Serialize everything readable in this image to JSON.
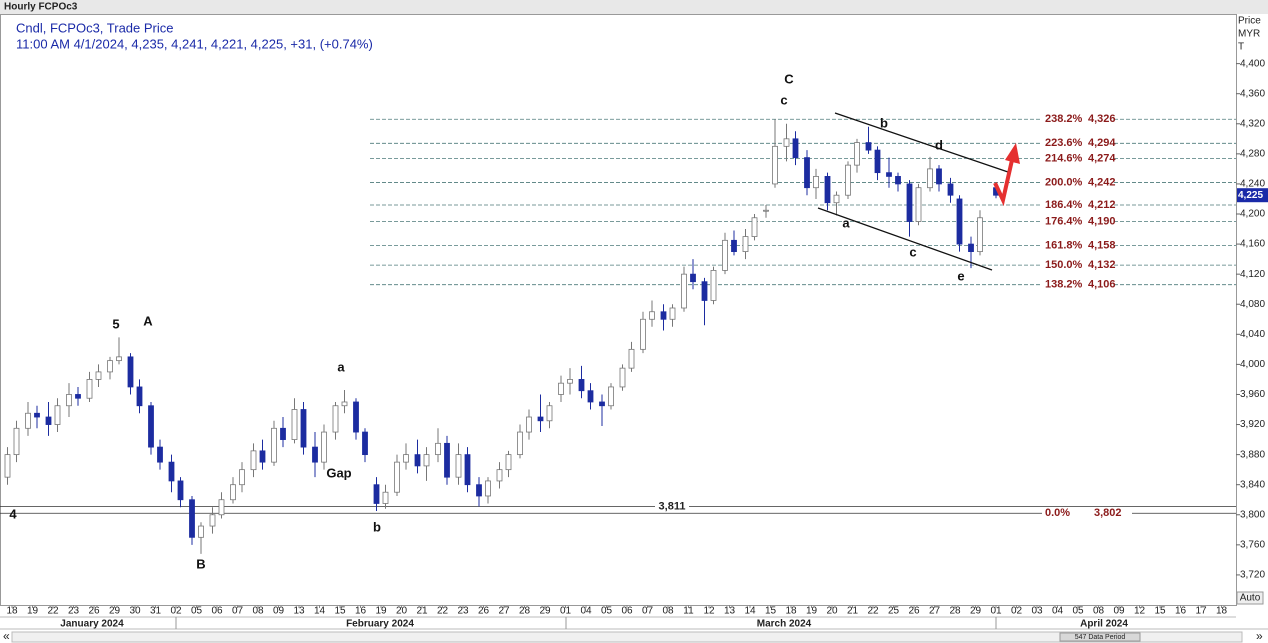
{
  "header": {
    "window_title": "Hourly FCPOc3",
    "line1": "Cndl, FCPOc3, Trade Price",
    "line2": "11:00 AM 4/1/2024, 4,235, 4,241, 4,221, 4,225, +31, (+0.74%)"
  },
  "chart_data": {
    "type": "candlestick",
    "axis_title": [
      "Price",
      "MYR",
      "T"
    ],
    "categories": [
      "18",
      "19",
      "22",
      "23",
      "26",
      "29",
      "30",
      "31",
      "02",
      "05",
      "06",
      "07",
      "08",
      "09",
      "13",
      "14",
      "15",
      "16",
      "19",
      "20",
      "21",
      "22",
      "23",
      "26",
      "27",
      "28",
      "29",
      "01",
      "04",
      "05",
      "06",
      "07",
      "08",
      "11",
      "12",
      "13",
      "14",
      "15",
      "18",
      "19",
      "20",
      "21",
      "22",
      "25",
      "26",
      "27",
      "28",
      "29",
      "01",
      "02",
      "03",
      "04",
      "05",
      "08",
      "09",
      "12",
      "15",
      "16",
      "17",
      "18"
    ],
    "months": [
      "January 2024",
      "February 2024",
      "March 2024",
      "April 2024"
    ],
    "ohlc": [
      [
        [
          3850,
          3890,
          3840,
          3880
        ],
        [
          3880,
          3925,
          3870,
          3915
        ]
      ],
      [
        [
          3915,
          3950,
          3905,
          3935
        ],
        [
          3935,
          3945,
          3915,
          3930
        ]
      ],
      [
        [
          3930,
          3950,
          3905,
          3920
        ],
        [
          3920,
          3955,
          3910,
          3945
        ]
      ],
      [
        [
          3945,
          3975,
          3930,
          3960
        ],
        [
          3960,
          3970,
          3945,
          3955
        ]
      ],
      [
        [
          3955,
          3990,
          3950,
          3980
        ],
        [
          3980,
          4000,
          3970,
          3990
        ]
      ],
      [
        [
          3990,
          4010,
          3980,
          4005
        ],
        [
          4005,
          4036,
          4000,
          4010
        ]
      ],
      [
        [
          4010,
          4015,
          3960,
          3970
        ],
        [
          3970,
          3980,
          3935,
          3945
        ]
      ],
      [
        [
          3945,
          3950,
          3880,
          3890
        ],
        [
          3890,
          3900,
          3860,
          3870
        ]
      ],
      [
        [
          3870,
          3880,
          3830,
          3845
        ],
        [
          3845,
          3850,
          3810,
          3820
        ]
      ],
      [
        [
          3820,
          3825,
          3760,
          3770
        ],
        [
          3770,
          3790,
          3748,
          3785
        ]
      ],
      [
        [
          3785,
          3810,
          3775,
          3800
        ],
        [
          3800,
          3830,
          3795,
          3820
        ]
      ],
      [
        [
          3820,
          3850,
          3815,
          3840
        ],
        [
          3840,
          3870,
          3830,
          3860
        ]
      ],
      [
        [
          3860,
          3895,
          3850,
          3885
        ],
        [
          3885,
          3900,
          3860,
          3870
        ]
      ],
      [
        [
          3870,
          3925,
          3865,
          3915
        ],
        [
          3915,
          3930,
          3890,
          3900
        ]
      ],
      [
        [
          3900,
          3955,
          3895,
          3940
        ],
        [
          3940,
          3950,
          3880,
          3890
        ]
      ],
      [
        [
          3890,
          3910,
          3850,
          3870
        ],
        [
          3870,
          3920,
          3860,
          3910
        ]
      ],
      [
        [
          3910,
          3950,
          3900,
          3945
        ],
        [
          3945,
          3966,
          3935,
          3950
        ]
      ],
      [
        [
          3950,
          3955,
          3900,
          3910
        ],
        [
          3910,
          3915,
          3870,
          3880
        ]
      ],
      [
        [
          3840,
          3850,
          3805,
          3815
        ],
        [
          3815,
          3840,
          3808,
          3830
        ]
      ],
      [
        [
          3830,
          3880,
          3825,
          3870
        ],
        [
          3870,
          3895,
          3860,
          3880
        ]
      ],
      [
        [
          3880,
          3900,
          3855,
          3865
        ],
        [
          3865,
          3890,
          3845,
          3880
        ]
      ],
      [
        [
          3880,
          3915,
          3870,
          3895
        ],
        [
          3895,
          3905,
          3840,
          3850
        ]
      ],
      [
        [
          3850,
          3895,
          3840,
          3880
        ],
        [
          3880,
          3890,
          3830,
          3840
        ]
      ],
      [
        [
          3840,
          3850,
          3811,
          3825
        ],
        [
          3825,
          3850,
          3815,
          3845
        ]
      ],
      [
        [
          3845,
          3870,
          3835,
          3860
        ],
        [
          3860,
          3885,
          3850,
          3880
        ]
      ],
      [
        [
          3880,
          3920,
          3875,
          3910
        ],
        [
          3910,
          3940,
          3900,
          3930
        ]
      ],
      [
        [
          3930,
          3960,
          3910,
          3925
        ],
        [
          3925,
          3950,
          3915,
          3945
        ]
      ],
      [
        [
          3960,
          3985,
          3950,
          3975
        ],
        [
          3975,
          3995,
          3960,
          3980
        ]
      ],
      [
        [
          3980,
          3998,
          3955,
          3965
        ],
        [
          3965,
          3975,
          3940,
          3950
        ]
      ],
      [
        [
          3950,
          3960,
          3918,
          3945
        ],
        [
          3945,
          3975,
          3940,
          3970
        ]
      ],
      [
        [
          3970,
          4000,
          3965,
          3995
        ],
        [
          3995,
          4030,
          3990,
          4020
        ]
      ],
      [
        [
          4020,
          4070,
          4015,
          4060
        ],
        [
          4060,
          4085,
          4050,
          4070
        ]
      ],
      [
        [
          4070,
          4080,
          4045,
          4060
        ],
        [
          4060,
          4080,
          4050,
          4075
        ]
      ],
      [
        [
          4075,
          4130,
          4070,
          4120
        ],
        [
          4120,
          4140,
          4100,
          4110
        ]
      ],
      [
        [
          4110,
          4115,
          4052,
          4085
        ],
        [
          4085,
          4130,
          4080,
          4125
        ]
      ],
      [
        [
          4125,
          4175,
          4120,
          4165
        ],
        [
          4165,
          4178,
          4145,
          4150
        ]
      ],
      [
        [
          4150,
          4180,
          4140,
          4170
        ],
        [
          4170,
          4200,
          4165,
          4195
        ]
      ],
      [
        [
          4205,
          4212,
          4195,
          4205
        ],
        [
          4240,
          4326,
          4235,
          4290
        ]
      ],
      [
        [
          4290,
          4320,
          4270,
          4300
        ],
        [
          4300,
          4310,
          4265,
          4275
        ]
      ],
      [
        [
          4275,
          4285,
          4225,
          4235
        ],
        [
          4235,
          4260,
          4220,
          4250
        ]
      ],
      [
        [
          4250,
          4255,
          4205,
          4215
        ],
        [
          4215,
          4230,
          4198,
          4225
        ]
      ],
      [
        [
          4225,
          4270,
          4220,
          4265
        ],
        [
          4265,
          4300,
          4255,
          4295
        ]
      ],
      [
        [
          4295,
          4316,
          4280,
          4285
        ],
        [
          4285,
          4290,
          4245,
          4255
        ]
      ],
      [
        [
          4255,
          4275,
          4235,
          4250
        ],
        [
          4250,
          4255,
          4230,
          4240
        ]
      ],
      [
        [
          4240,
          4245,
          4170,
          4190
        ],
        [
          4190,
          4240,
          4185,
          4235
        ]
      ],
      [
        [
          4235,
          4276,
          4230,
          4260
        ],
        [
          4260,
          4265,
          4230,
          4240
        ]
      ],
      [
        [
          4240,
          4248,
          4215,
          4225
        ],
        [
          4220,
          4225,
          4150,
          4160
        ]
      ],
      [
        [
          4160,
          4170,
          4128,
          4150
        ],
        [
          4150,
          4205,
          4145,
          4195
        ]
      ],
      [
        [
          4235,
          4241,
          4221,
          4225
        ]
      ],
      null,
      null,
      null,
      null,
      null,
      null,
      null,
      null,
      null,
      null,
      null
    ],
    "up_color": "#ffffff",
    "down_color": "#1c2ca0",
    "ylim": [
      3680,
      4466
    ],
    "yticks": [
      {
        "value": 3720,
        "label": "3,720"
      },
      {
        "value": 3760,
        "label": "3,760"
      },
      {
        "value": 3800,
        "label": "3,800"
      },
      {
        "value": 3840,
        "label": "3,840"
      },
      {
        "value": 3880,
        "label": "3,880"
      },
      {
        "value": 3920,
        "label": "3,920"
      },
      {
        "value": 3960,
        "label": "3,960"
      },
      {
        "value": 4000,
        "label": "4,000"
      },
      {
        "value": 4040,
        "label": "4,040"
      },
      {
        "value": 4080,
        "label": "4,080"
      },
      {
        "value": 4120,
        "label": "4,120"
      },
      {
        "value": 4160,
        "label": "4,160"
      },
      {
        "value": 4200,
        "label": "4,200"
      },
      {
        "value": 4240,
        "label": "4,240"
      },
      {
        "value": 4280,
        "label": "4,280"
      },
      {
        "value": 4320,
        "label": "4,320"
      },
      {
        "value": 4360,
        "label": "4,360"
      },
      {
        "value": 4400,
        "label": "4,400"
      }
    ],
    "last_price": {
      "value": 4225,
      "label": "4,225"
    },
    "fib_levels": [
      {
        "ratio": "238.2%",
        "price": {
          "value": 4326,
          "label": "4,326"
        }
      },
      {
        "ratio": "223.6%",
        "price": {
          "value": 4294,
          "label": "4,294"
        }
      },
      {
        "ratio": "214.6%",
        "price": {
          "value": 4274,
          "label": "4,274"
        }
      },
      {
        "ratio": "200.0%",
        "price": {
          "value": 4242,
          "label": "4,242"
        }
      },
      {
        "ratio": "186.4%",
        "price": {
          "value": 4212,
          "label": "4,212"
        }
      },
      {
        "ratio": "176.4%",
        "price": {
          "value": 4190,
          "label": "4,190"
        }
      },
      {
        "ratio": "161.8%",
        "price": {
          "value": 4158,
          "label": "4,158"
        }
      },
      {
        "ratio": "150.0%",
        "price": {
          "value": 4132,
          "label": "4,132"
        }
      },
      {
        "ratio": "138.2%",
        "price": {
          "value": 4106,
          "label": "4,106"
        }
      },
      {
        "ratio": "0.0%",
        "price": {
          "value": 3802,
          "label": "3,802"
        }
      }
    ],
    "support": {
      "value": 3811,
      "label": "3,811"
    },
    "annotations": [
      "C",
      "c",
      "b",
      "d",
      "a",
      "c",
      "e",
      "5",
      "A",
      "a",
      "Gap",
      "B",
      "b",
      "4"
    ],
    "scale_button": "Auto",
    "footer": "547 Data Period",
    "scroll_left": "«",
    "scroll_right": "»"
  }
}
